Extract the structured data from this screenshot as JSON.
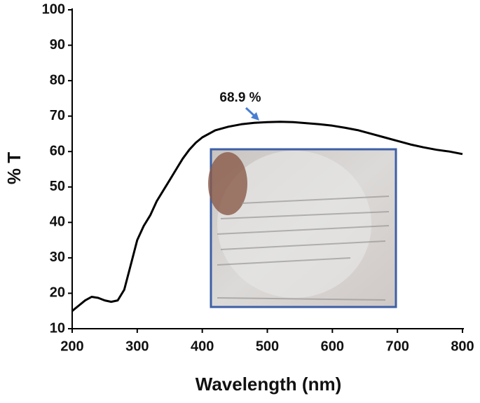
{
  "chart_data": {
    "type": "line",
    "x_label": "Wavelength (nm)",
    "y_label": "% T",
    "annotation": "68.9 %",
    "color": "#000000",
    "x": [
      200,
      210,
      220,
      230,
      240,
      250,
      260,
      270,
      280,
      290,
      300,
      310,
      320,
      330,
      340,
      350,
      360,
      370,
      380,
      390,
      400,
      420,
      440,
      460,
      480,
      500,
      520,
      540,
      560,
      580,
      600,
      620,
      640,
      660,
      680,
      700,
      720,
      740,
      760,
      780,
      800
    ],
    "values": [
      15,
      16.5,
      18,
      19,
      18.7,
      18,
      17.6,
      18,
      21,
      28,
      35,
      39,
      42,
      46,
      49,
      52,
      55,
      58,
      60.5,
      62.5,
      64,
      66,
      67,
      67.7,
      68.1,
      68.3,
      68.4,
      68.3,
      68,
      67.7,
      67.3,
      66.7,
      66,
      65,
      64,
      63,
      62,
      61.2,
      60.5,
      60,
      59.3
    ],
    "xlim": [
      200,
      800
    ],
    "xticks": [
      200,
      300,
      400,
      500,
      600,
      700,
      800
    ],
    "ylim": [
      10,
      100
    ],
    "yticks": [
      10,
      20,
      30,
      40,
      50,
      60,
      70,
      80,
      90,
      100
    ]
  }
}
